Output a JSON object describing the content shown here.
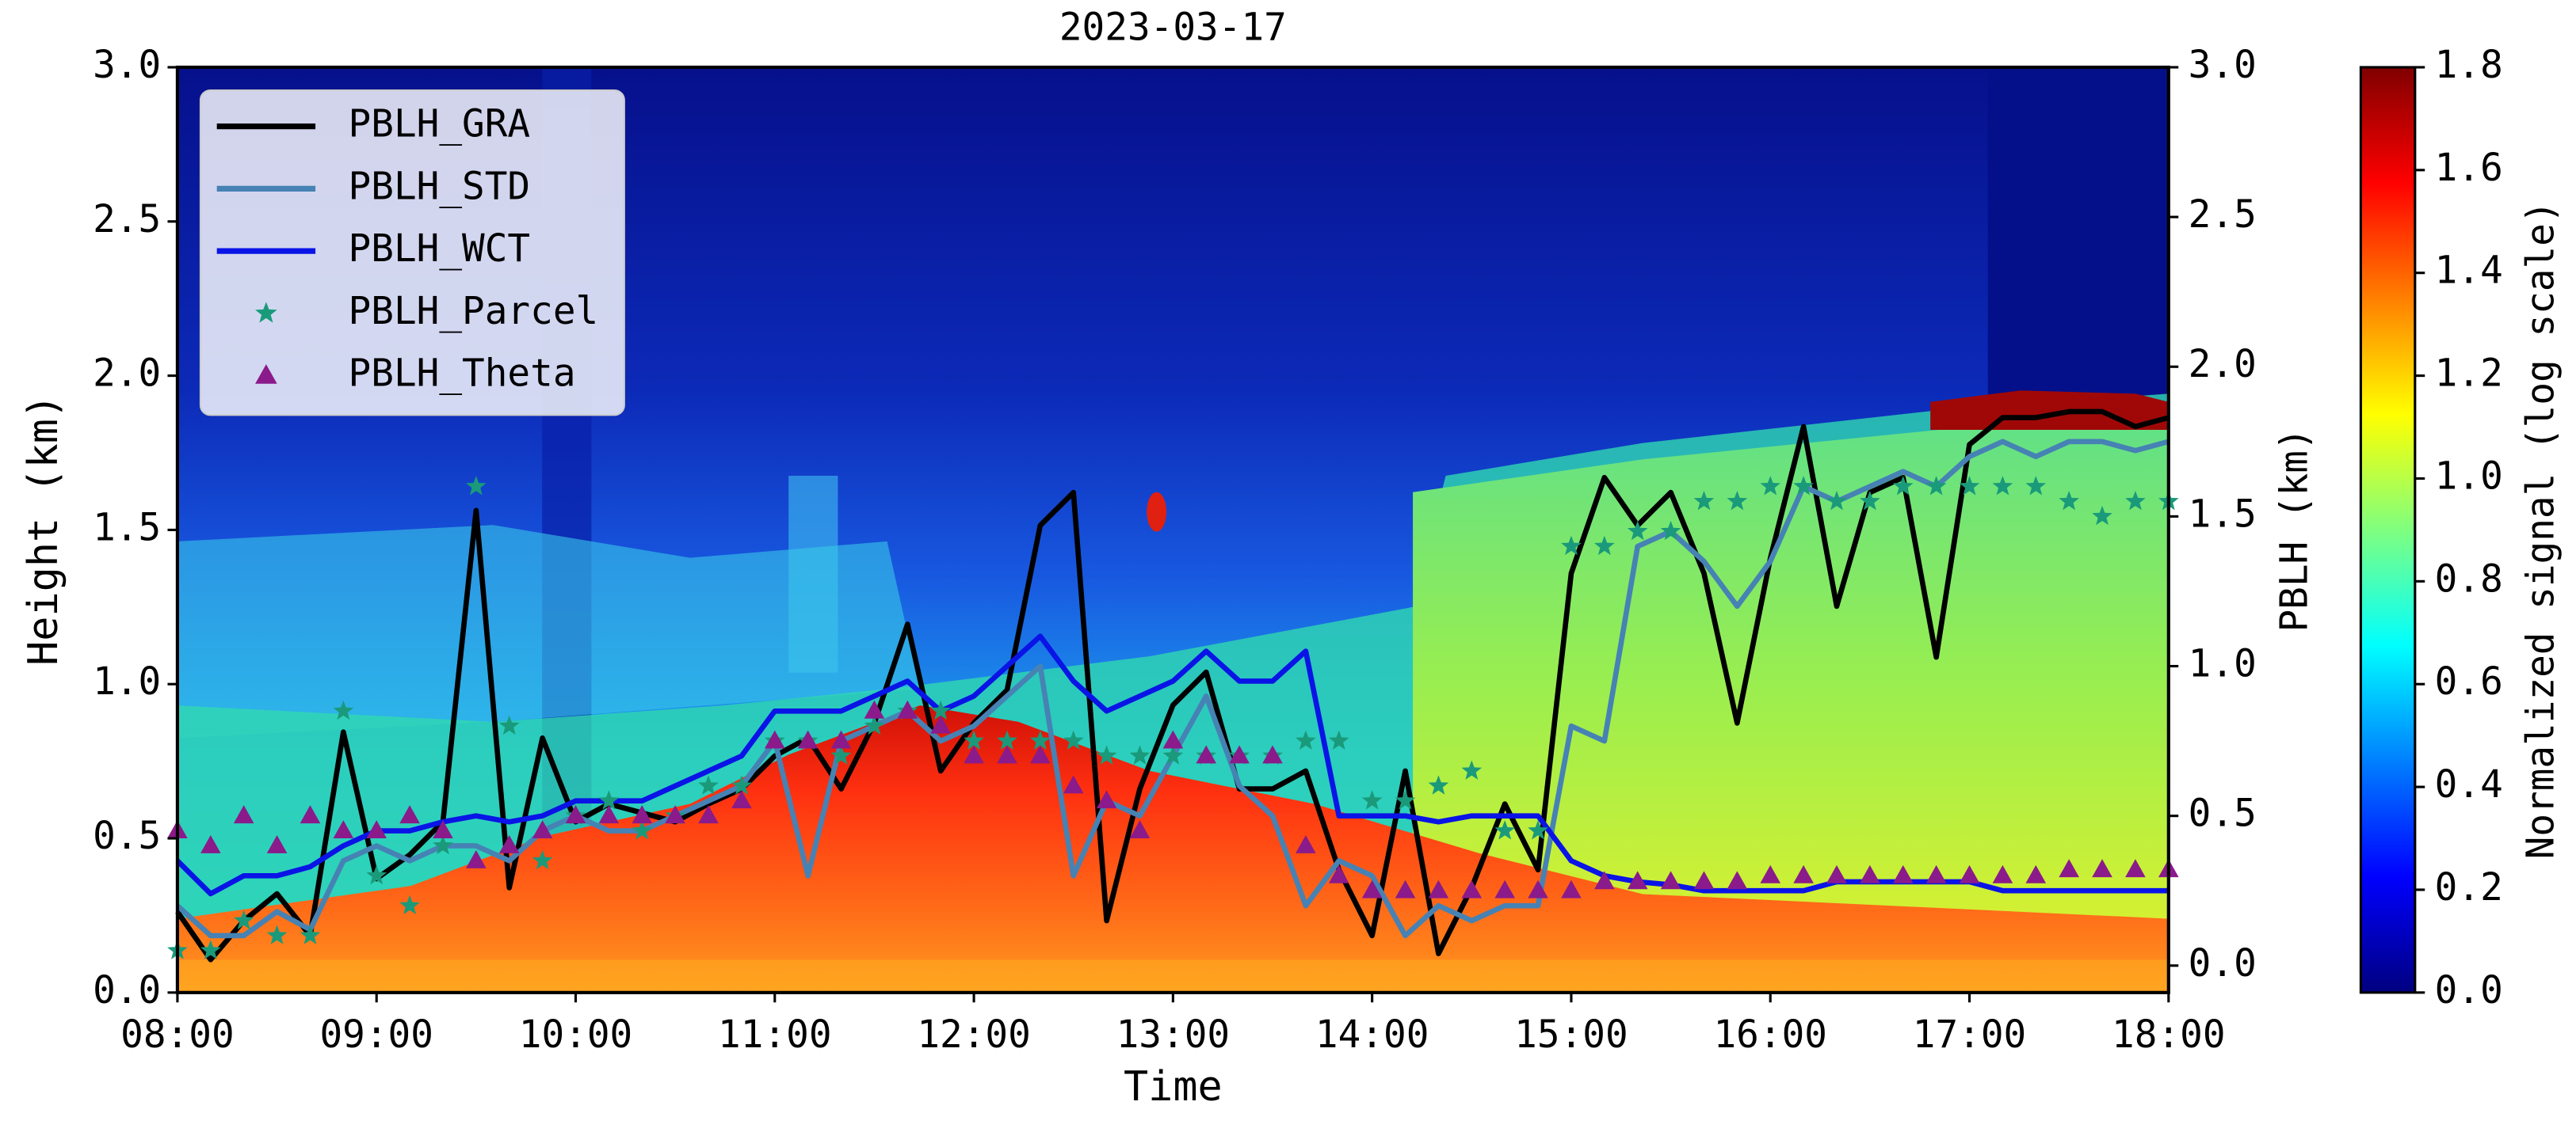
{
  "chart_data": {
    "type": "line",
    "title": "2023-03-17",
    "x_label": "Time",
    "y_label": "Height (km)",
    "y2_label": "PBLH (km)",
    "colorbar_label": "Normalized signal (log scale)",
    "x": [
      480,
      490,
      500,
      510,
      520,
      530,
      540,
      550,
      560,
      570,
      580,
      590,
      600,
      610,
      620,
      630,
      640,
      650,
      660,
      670,
      680,
      690,
      700,
      710,
      720,
      730,
      740,
      750,
      760,
      770,
      780,
      790,
      800,
      810,
      820,
      830,
      840,
      850,
      860,
      870,
      880,
      890,
      900,
      910,
      920,
      930,
      940,
      950,
      960,
      970,
      980,
      990,
      1000,
      1010,
      1020,
      1030,
      1040,
      1050,
      1060,
      1070,
      1080
    ],
    "xlim": [
      480,
      1080
    ],
    "xticks": [
      {
        "value": 480,
        "label": "08:00"
      },
      {
        "value": 540,
        "label": "09:00"
      },
      {
        "value": 600,
        "label": "10:00"
      },
      {
        "value": 660,
        "label": "11:00"
      },
      {
        "value": 720,
        "label": "12:00"
      },
      {
        "value": 780,
        "label": "13:00"
      },
      {
        "value": 840,
        "label": "14:00"
      },
      {
        "value": 900,
        "label": "15:00"
      },
      {
        "value": 960,
        "label": "16:00"
      },
      {
        "value": 1020,
        "label": "17:00"
      },
      {
        "value": 1080,
        "label": "18:00"
      }
    ],
    "ylim": [
      0,
      3
    ],
    "yticks": [
      {
        "value": 0,
        "label": "0.0"
      },
      0.5,
      {
        "value": 1,
        "label": "1.0"
      },
      1.5,
      {
        "value": 2,
        "label": "2.0"
      },
      2.5,
      {
        "value": 3,
        "label": "3.0"
      }
    ],
    "y2lim": [
      -0.09,
      3
    ],
    "y2ticks": [
      {
        "value": 0,
        "label": "0.0"
      },
      0.5,
      {
        "value": 1,
        "label": "1.0"
      },
      1.5,
      {
        "value": 2,
        "label": "2.0"
      },
      2.5,
      {
        "value": 3,
        "label": "3.0"
      }
    ],
    "clim": [
      0,
      1.8
    ],
    "cticks": [
      {
        "value": 0,
        "label": "0.0"
      },
      0.2,
      0.4,
      0.6,
      0.8,
      {
        "value": 1,
        "label": "1.0"
      },
      1.2,
      1.4,
      1.6,
      1.8
    ],
    "legend": "upper left",
    "series": [
      {
        "name": "PBLH_GRA",
        "color": "#000000",
        "marker": "line",
        "axis": "y2",
        "values": [
          0.18,
          0.02,
          0.15,
          0.24,
          0.1,
          0.78,
          0.29,
          0.37,
          0.48,
          1.52,
          0.26,
          0.76,
          0.48,
          0.54,
          0.51,
          0.48,
          0.54,
          0.59,
          0.7,
          0.76,
          0.59,
          0.81,
          1.14,
          0.65,
          0.81,
          0.92,
          1.47,
          1.58,
          0.15,
          0.59,
          0.87,
          0.98,
          0.59,
          0.59,
          0.65,
          0.32,
          0.1,
          0.65,
          0.04,
          0.26,
          0.54,
          0.32,
          1.31,
          1.63,
          1.47,
          1.58,
          1.31,
          0.81,
          1.36,
          1.8,
          1.2,
          1.58,
          1.63,
          1.03,
          1.74,
          1.83,
          1.83,
          1.85,
          1.85,
          1.8,
          1.83
        ]
      },
      {
        "name": "PBLH_STD",
        "color": "#4682b4",
        "marker": "line",
        "axis": "y2",
        "values": [
          0.2,
          0.1,
          0.1,
          0.18,
          0.12,
          0.35,
          0.4,
          0.35,
          0.4,
          0.4,
          0.35,
          0.45,
          0.5,
          0.45,
          0.45,
          0.5,
          0.55,
          0.6,
          0.75,
          0.3,
          0.75,
          0.8,
          0.85,
          0.75,
          0.8,
          0.9,
          1.0,
          0.3,
          0.55,
          0.5,
          0.7,
          0.9,
          0.6,
          0.5,
          0.2,
          0.35,
          0.3,
          0.1,
          0.2,
          0.15,
          0.2,
          0.2,
          0.8,
          0.75,
          1.4,
          1.45,
          1.35,
          1.2,
          1.35,
          1.6,
          1.55,
          1.6,
          1.65,
          1.6,
          1.7,
          1.75,
          1.7,
          1.75,
          1.75,
          1.72,
          1.75
        ]
      },
      {
        "name": "PBLH_WCT",
        "color": "#0a14e6",
        "marker": "line",
        "axis": "y2",
        "values": [
          0.35,
          0.24,
          0.3,
          0.3,
          0.33,
          0.4,
          0.45,
          0.45,
          0.48,
          0.5,
          0.48,
          0.5,
          0.55,
          0.55,
          0.55,
          0.6,
          0.65,
          0.7,
          0.85,
          0.85,
          0.85,
          0.9,
          0.95,
          0.85,
          0.9,
          1.0,
          1.1,
          0.95,
          0.85,
          0.9,
          0.95,
          1.05,
          0.95,
          0.95,
          1.05,
          0.5,
          0.5,
          0.5,
          0.48,
          0.5,
          0.5,
          0.5,
          0.35,
          0.3,
          0.28,
          0.27,
          0.25,
          0.25,
          0.25,
          0.25,
          0.28,
          0.28,
          0.28,
          0.28,
          0.28,
          0.25,
          0.25,
          0.25,
          0.25,
          0.25,
          0.25
        ]
      },
      {
        "name": "PBLH_Parcel",
        "color": "#1a9a7a",
        "marker": "star",
        "axis": "y2",
        "values": [
          0.05,
          0.05,
          0.15,
          0.1,
          0.1,
          0.85,
          0.3,
          0.2,
          0.4,
          1.6,
          0.8,
          0.35,
          0.5,
          0.55,
          0.45,
          0.5,
          0.6,
          0.6,
          0.75,
          0.75,
          0.7,
          0.8,
          0.85,
          0.85,
          0.75,
          0.75,
          0.75,
          0.75,
          0.7,
          0.7,
          0.7,
          0.7,
          0.7,
          0.7,
          0.75,
          0.75,
          0.55,
          0.55,
          0.6,
          0.65,
          0.45,
          0.45,
          1.4,
          1.4,
          1.45,
          1.45,
          1.55,
          1.55,
          1.6,
          1.6,
          1.55,
          1.55,
          1.6,
          1.6,
          1.6,
          1.6,
          1.6,
          1.55,
          1.5,
          1.55,
          1.55
        ]
      },
      {
        "name": "PBLH_Theta",
        "color": "#8b1a8b",
        "marker": "triangle",
        "axis": "y2",
        "values": [
          0.45,
          0.4,
          0.5,
          0.4,
          0.5,
          0.45,
          0.45,
          0.5,
          0.45,
          0.35,
          0.4,
          0.45,
          0.5,
          0.5,
          0.5,
          0.5,
          0.5,
          0.55,
          0.75,
          0.75,
          0.75,
          0.85,
          0.85,
          0.8,
          0.7,
          0.7,
          0.7,
          0.6,
          0.55,
          0.45,
          0.75,
          0.7,
          0.7,
          0.7,
          0.4,
          0.3,
          0.25,
          0.25,
          0.25,
          0.25,
          0.25,
          0.25,
          0.25,
          0.28,
          0.28,
          0.28,
          0.28,
          0.28,
          0.3,
          0.3,
          0.3,
          0.3,
          0.3,
          0.3,
          0.3,
          0.3,
          0.3,
          0.32,
          0.32,
          0.32,
          0.32
        ]
      }
    ]
  }
}
